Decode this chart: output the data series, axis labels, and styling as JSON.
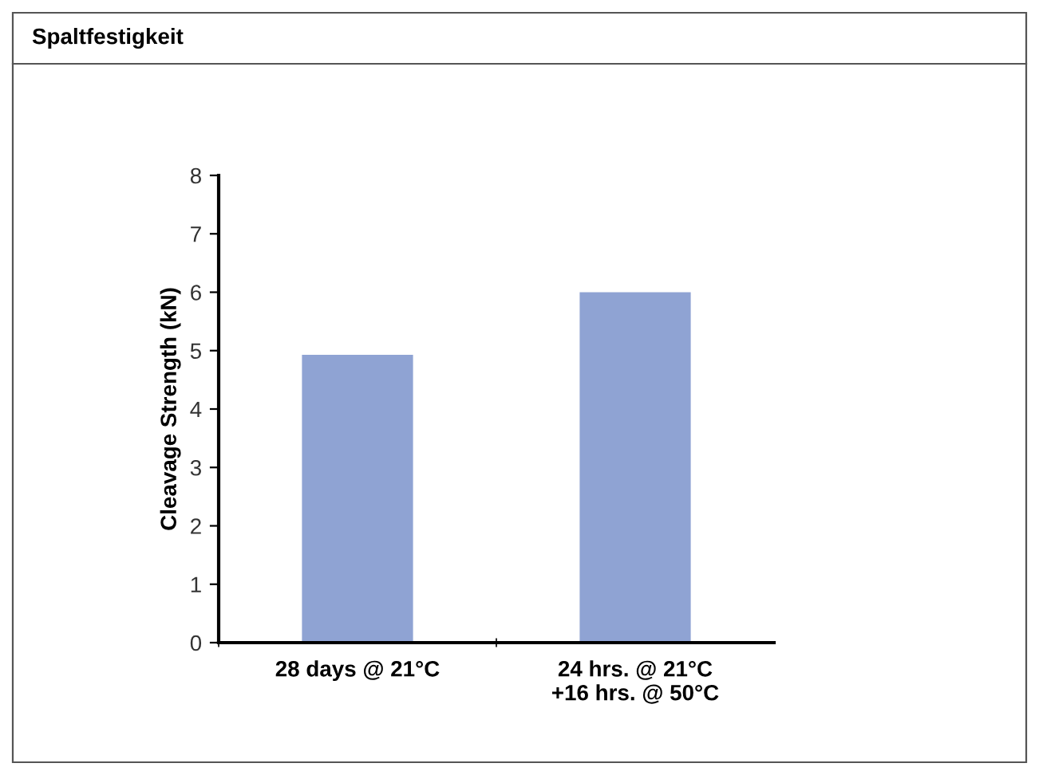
{
  "chart_data": {
    "type": "bar",
    "title": "Spaltfestigkeit",
    "ylabel": "Cleavage Strength (kN)",
    "categories": [
      "28 days @ 21°C",
      "24 hrs. @ 21°C\n+16 hrs. @ 50°C"
    ],
    "values": [
      4.93,
      6.0
    ],
    "color": "#8fa3d3",
    "ylim": [
      0,
      8
    ],
    "yticks": [
      0,
      1,
      2,
      3,
      4,
      5,
      6,
      7,
      8
    ],
    "grid": false,
    "legend": false
  }
}
